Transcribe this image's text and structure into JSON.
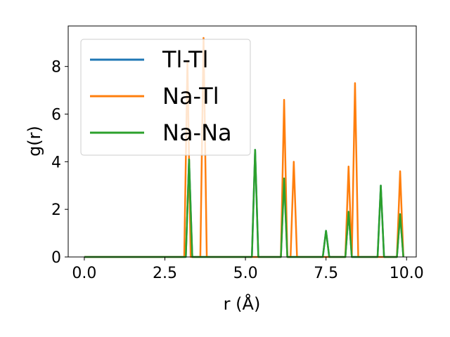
{
  "chart_data": {
    "type": "line",
    "title": "",
    "xlabel": "r (Å)",
    "ylabel": "g(r)",
    "xlim": [
      -0.5,
      10.3
    ],
    "ylim": [
      0,
      9.7
    ],
    "xticks": [
      0.0,
      2.5,
      5.0,
      7.5,
      10.0
    ],
    "xtick_labels": [
      "0.0",
      "2.5",
      "5.0",
      "7.5",
      "10.0"
    ],
    "yticks": [
      0,
      2,
      4,
      6,
      8
    ],
    "ytick_labels": [
      "0",
      "2",
      "4",
      "6",
      "8"
    ],
    "grid": false,
    "legend": "top-left",
    "series": [
      {
        "name": "Tl-Tl",
        "color": "#1f77b4",
        "peaks": [
          [
            3.25,
            4.1
          ],
          [
            5.3,
            4.5
          ],
          [
            6.2,
            3.3
          ],
          [
            7.5,
            1.1
          ],
          [
            8.2,
            1.9
          ],
          [
            9.2,
            3.0
          ],
          [
            9.8,
            1.8
          ]
        ]
      },
      {
        "name": "Na-Tl",
        "color": "#ff7f0e",
        "peaks": [
          [
            3.2,
            8.2
          ],
          [
            3.7,
            9.2
          ],
          [
            6.2,
            6.6
          ],
          [
            6.5,
            4.0
          ],
          [
            8.2,
            3.8
          ],
          [
            8.4,
            7.3
          ],
          [
            9.8,
            3.6
          ]
        ]
      },
      {
        "name": "Na-Na",
        "color": "#2ca02c",
        "peaks": [
          [
            3.25,
            4.1
          ],
          [
            5.3,
            4.5
          ],
          [
            6.2,
            3.3
          ],
          [
            7.5,
            1.1
          ],
          [
            8.2,
            1.9
          ],
          [
            9.2,
            3.0
          ],
          [
            9.8,
            1.8
          ]
        ]
      }
    ]
  }
}
